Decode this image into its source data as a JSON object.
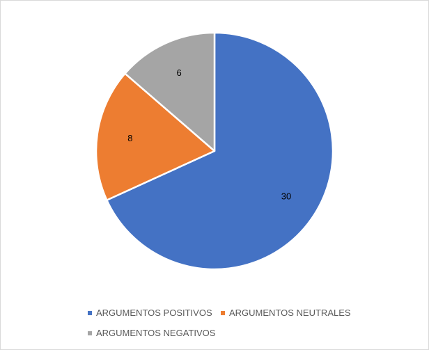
{
  "chart_data": {
    "type": "pie",
    "title": "",
    "categories": [
      "ARGUMENTOS POSITIVOS",
      "ARGUMENTOS NEUTRALES",
      "ARGUMENTOS NEGATIVOS"
    ],
    "values": [
      30,
      8,
      6
    ],
    "colors": [
      "#4472c4",
      "#ed7d31",
      "#a5a5a5"
    ],
    "data_labels": [
      "30",
      "8",
      "6"
    ],
    "legend_position": "bottom",
    "start_angle": "top",
    "direction": "clockwise"
  }
}
